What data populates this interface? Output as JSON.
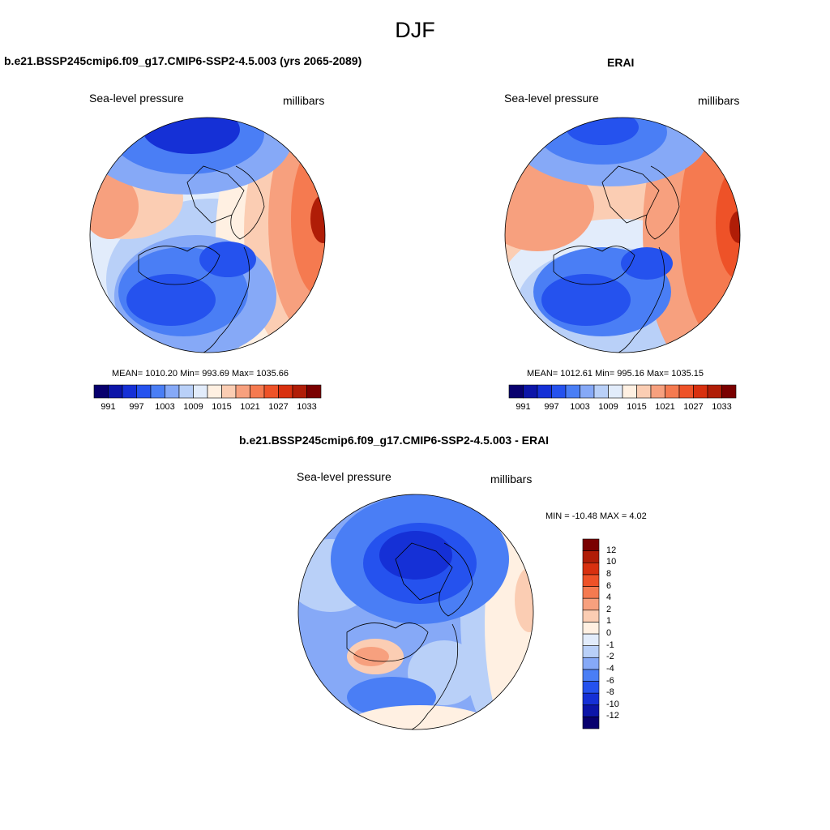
{
  "season_title": "DJF",
  "panels": [
    {
      "id": "model",
      "title": "b.e21.BSSP245cmip6.f09_g17.CMIP6-SSP2-4.5.003 (yrs 2065-2089)",
      "variable": "Sea-level pressure",
      "units": "millibars",
      "stats": "MEAN= 1010.20  Min= 993.69  Max= 1035.66"
    },
    {
      "id": "obs",
      "title": "ERAI",
      "variable": "Sea-level pressure",
      "units": "millibars",
      "stats": "MEAN= 1012.61  Min= 995.16  Max= 1035.15"
    },
    {
      "id": "diff",
      "title": "b.e21.BSSP245cmip6.f09_g17.CMIP6-SSP2-4.5.003 - ERAI",
      "variable": "Sea-level pressure",
      "units": "millibars",
      "stats": "MIN = -10.48 MAX =   4.02"
    }
  ],
  "abs_colorbar": {
    "colors": [
      "#08006e",
      "#0c15a8",
      "#1530d6",
      "#2552ee",
      "#4a7ef5",
      "#86a9f7",
      "#b9d0f8",
      "#e2ecfb",
      "#fff0e2",
      "#fbcdb3",
      "#f7a07e",
      "#f57a50",
      "#ee5228",
      "#d8300f",
      "#b01d07",
      "#7a0000"
    ],
    "labels": [
      "991",
      "997",
      "1003",
      "1009",
      "1015",
      "1021",
      "1027",
      "1033"
    ]
  },
  "diff_colorbar": {
    "colors": [
      "#08006e",
      "#0c15a8",
      "#1530d6",
      "#2552ee",
      "#4a7ef5",
      "#86a9f7",
      "#b9d0f8",
      "#e2ecfb",
      "#fff0e2",
      "#fbcdb3",
      "#f7a07e",
      "#f57a50",
      "#ee5228",
      "#d8300f",
      "#b01d07",
      "#7a0000"
    ],
    "labels": [
      "12",
      "10",
      "8",
      "6",
      "4",
      "2",
      "1",
      "0",
      "-1",
      "-2",
      "-4",
      "-6",
      "-8",
      "-10",
      "-12"
    ]
  }
}
